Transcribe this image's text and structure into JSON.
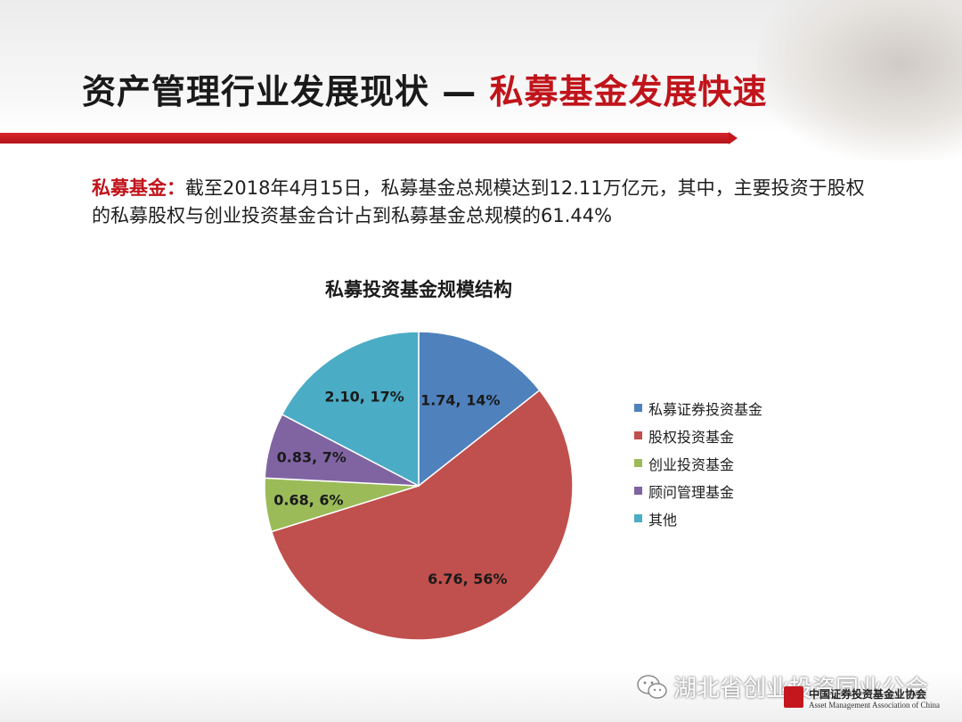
{
  "slide": {
    "title_main": "资产管理行业发展现状 — ",
    "title_accent": "私募基金发展快速"
  },
  "summary": {
    "lead": "私募基金：",
    "text": "截至2018年4月15日，私募基金总规模达到12.11万亿元，其中，主要投资于股权的私募股权与创业投资基金合计占到私募基金总规模的61.44%"
  },
  "chart_data": {
    "type": "pie",
    "title": "私募投资基金规模结构",
    "slices": [
      {
        "name": "私募证券投资基金",
        "value": 1.74,
        "percent": 14,
        "label": "1.74, 14%",
        "color": "#4f81bd"
      },
      {
        "name": "股权投资基金",
        "value": 6.76,
        "percent": 56,
        "label": "6.76, 56%",
        "color": "#c0504d"
      },
      {
        "name": "创业投资基金",
        "value": 0.68,
        "percent": 6,
        "label": "0.68, 6%",
        "color": "#9bbb59"
      },
      {
        "name": "顾问管理基金",
        "value": 0.83,
        "percent": 7,
        "label": "0.83, 7%",
        "color": "#8064a2"
      },
      {
        "name": "其他",
        "value": 2.1,
        "percent": 17,
        "label": "2.10, 17%",
        "color": "#4bacc6"
      }
    ],
    "legend_position": "right"
  },
  "footer": {
    "wechat_account": "湖北省创业投资同业公会",
    "org_name_cn": "中国证券投资基金业协会",
    "org_name_en": "Asset Management Association of China",
    "wechat_icon": "wechat-icon",
    "seal_icon": "amac-seal-icon"
  }
}
